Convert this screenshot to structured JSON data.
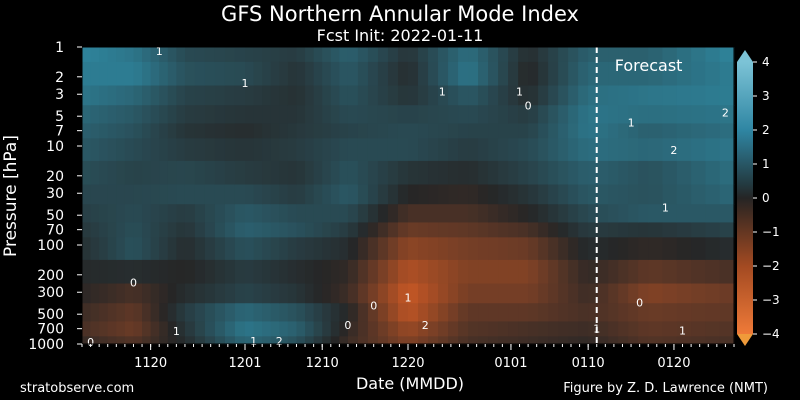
{
  "header": {
    "title": "GFS Northern Annular Mode Index",
    "subtitle": "Fcst Init: 2022-01-11"
  },
  "footer": {
    "source": "stratobserve.com",
    "credit": "Figure by Z. D. Lawrence (NMT)"
  },
  "chart_data": {
    "type": "heatmap",
    "title": "GFS Northern Annular Mode Index",
    "subtitle": "Fcst Init: 2022-01-11",
    "xlabel": "Date (MMDD)",
    "ylabel": "Pressure [hPa]",
    "x_ticks": [
      "1120",
      "1201",
      "1210",
      "1220",
      "0101",
      "0110",
      "0120"
    ],
    "x_tick_dates": [
      "2021-11-20",
      "2021-12-01",
      "2021-12-10",
      "2021-12-20",
      "2022-01-01",
      "2022-01-10",
      "2022-01-20"
    ],
    "xlim": [
      "2021-11-12",
      "2022-01-27"
    ],
    "y_ticks": [
      1,
      2,
      3,
      5,
      7,
      10,
      20,
      30,
      50,
      70,
      100,
      200,
      300,
      500,
      700,
      1000
    ],
    "ylim": [
      1000,
      1
    ],
    "y_scale": "log",
    "forecast_start": "2022-01-11",
    "forecast_label": "Forecast",
    "colorbar": {
      "ticks": [
        4,
        3,
        2,
        1,
        0,
        -1,
        -2,
        -3,
        -4
      ],
      "tick_labels": [
        "4",
        "3",
        "2",
        "1",
        "0",
        "−1",
        "−2",
        "−3",
        "−4"
      ],
      "range": [
        -4,
        4
      ],
      "colors_positive": "#3a92ad",
      "colors_negative": "#d05a25",
      "colors_neutral": "#262626"
    },
    "grid": false,
    "contour_labels": [
      {
        "text": "1",
        "date": "2021-11-21",
        "p": 1.1
      },
      {
        "text": "1",
        "date": "2021-12-01",
        "p": 2.3
      },
      {
        "text": "1",
        "date": "2021-12-24",
        "p": 2.8
      },
      {
        "text": "1",
        "date": "2022-01-02",
        "p": 2.8
      },
      {
        "text": "0",
        "date": "2022-01-03",
        "p": 3.9
      },
      {
        "text": "1",
        "date": "2022-01-15",
        "p": 5.8
      },
      {
        "text": "2",
        "date": "2022-01-26",
        "p": 4.6
      },
      {
        "text": "2",
        "date": "2022-01-20",
        "p": 11
      },
      {
        "text": "1",
        "date": "2022-01-19",
        "p": 42
      },
      {
        "text": "0",
        "date": "2021-11-18",
        "p": 240
      },
      {
        "text": "1",
        "date": "2021-12-20",
        "p": 340
      },
      {
        "text": "0",
        "date": "2021-12-16",
        "p": 410
      },
      {
        "text": "0",
        "date": "2021-12-13",
        "p": 640
      },
      {
        "text": "2",
        "date": "2021-12-22",
        "p": 640
      },
      {
        "text": "0",
        "date": "2022-01-16",
        "p": 380
      },
      {
        "text": "1",
        "date": "2022-01-11",
        "p": 700
      },
      {
        "text": "1",
        "date": "2021-11-23",
        "p": 740
      },
      {
        "text": "1",
        "date": "2022-01-21",
        "p": 730
      },
      {
        "text": "1",
        "date": "2021-12-02",
        "p": 930
      },
      {
        "text": "2",
        "date": "2021-12-05",
        "p": 930
      },
      {
        "text": "0",
        "date": "2021-11-13",
        "p": 960
      }
    ],
    "anomaly_field": [
      {
        "date": "2021-11-12",
        "values": [
          2.6,
          2.4,
          2.2,
          1.8,
          1.6,
          1.4,
          1.1,
          0.9,
          0.7,
          0.5,
          0.3,
          0.1,
          -0.1,
          -0.4,
          -0.6,
          -0.3
        ]
      },
      {
        "date": "2021-11-18",
        "values": [
          2.2,
          2.4,
          1.8,
          1.4,
          1.2,
          1.0,
          0.8,
          0.9,
          1.0,
          1.1,
          1.2,
          0.2,
          -0.6,
          -1.0,
          -1.2,
          -0.8
        ]
      },
      {
        "date": "2021-11-24",
        "values": [
          1.0,
          1.2,
          0.8,
          0.6,
          0.4,
          0.6,
          0.9,
          1.0,
          0.6,
          0.4,
          0.2,
          0.0,
          0.2,
          0.6,
          0.4,
          0.2
        ]
      },
      {
        "date": "2021-12-01",
        "values": [
          0.8,
          1.0,
          0.6,
          0.4,
          0.2,
          0.4,
          0.6,
          1.0,
          1.4,
          1.6,
          1.2,
          0.6,
          0.8,
          1.8,
          2.2,
          1.8
        ]
      },
      {
        "date": "2021-12-07",
        "values": [
          0.6,
          0.4,
          0.3,
          0.4,
          0.5,
          0.6,
          0.4,
          0.6,
          1.0,
          1.2,
          0.6,
          0.2,
          0.4,
          1.2,
          1.6,
          1.2
        ]
      },
      {
        "date": "2021-12-13",
        "values": [
          1.6,
          1.4,
          1.2,
          1.0,
          0.8,
          1.0,
          1.2,
          1.4,
          1.0,
          0.6,
          0.2,
          -0.2,
          -0.4,
          0.0,
          -0.2,
          -0.4
        ]
      },
      {
        "date": "2021-12-20",
        "values": [
          0.4,
          0.2,
          0.4,
          0.8,
          1.0,
          1.0,
          0.4,
          0.0,
          -0.6,
          -1.2,
          -1.8,
          -2.4,
          -2.8,
          -2.6,
          -2.0,
          -1.6
        ]
      },
      {
        "date": "2021-12-27",
        "values": [
          2.0,
          2.2,
          1.4,
          1.0,
          0.8,
          0.6,
          0.2,
          -0.2,
          -0.6,
          -1.0,
          -1.4,
          -1.6,
          -1.4,
          -1.0,
          -0.8,
          -0.6
        ]
      },
      {
        "date": "2022-01-03",
        "values": [
          0.2,
          0.0,
          0.2,
          0.6,
          0.8,
          1.0,
          0.8,
          0.4,
          0.0,
          -0.6,
          -1.2,
          -1.6,
          -1.4,
          -1.0,
          -0.6,
          -0.4
        ]
      },
      {
        "date": "2022-01-10",
        "values": [
          1.6,
          1.8,
          2.0,
          2.2,
          2.2,
          2.0,
          1.6,
          1.4,
          1.0,
          0.6,
          0.2,
          -0.2,
          -0.4,
          -0.6,
          -0.4,
          -0.2
        ]
      },
      {
        "date": "2022-01-17",
        "values": [
          1.6,
          1.8,
          2.2,
          2.0,
          1.6,
          1.8,
          1.2,
          1.2,
          1.4,
          0.4,
          -0.2,
          -1.0,
          -1.6,
          -1.2,
          -1.0,
          -0.8
        ]
      },
      {
        "date": "2022-01-27",
        "values": [
          2.6,
          2.4,
          2.4,
          2.2,
          2.0,
          2.2,
          2.0,
          1.8,
          1.4,
          0.8,
          0.2,
          -0.6,
          -1.2,
          -1.0,
          -0.8,
          -0.6
        ]
      }
    ]
  }
}
